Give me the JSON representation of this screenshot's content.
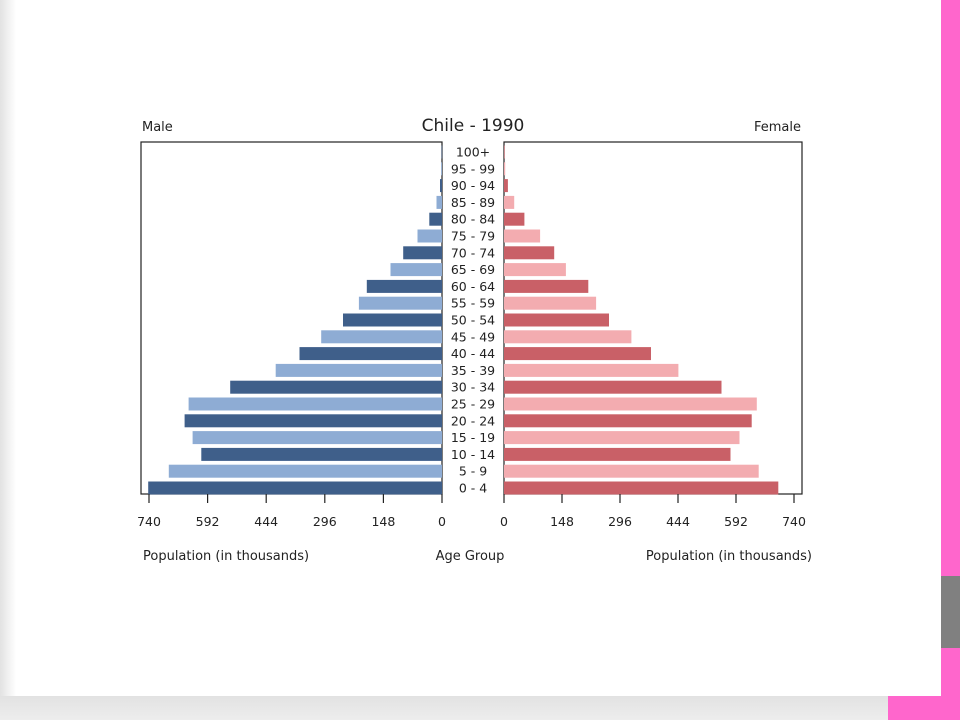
{
  "theme": {
    "accent_pink": "#ff66cc",
    "accent_gray": "#808080",
    "male_dark": "#3f5f8a",
    "male_light": "#8eacd4",
    "female_dark": "#c96067",
    "female_light": "#f3acb0"
  },
  "chart_data": {
    "type": "bar",
    "subtype": "population-pyramid",
    "title": "Chile - 1990",
    "left_label": "Male",
    "right_label": "Female",
    "center_xlabel": "Age Group",
    "xlabel_left": "Population (in thousands)",
    "xlabel_right": "Population (in thousands)",
    "xlim": [
      0,
      740
    ],
    "ticks_left": [
      "740",
      "592",
      "444",
      "296",
      "148",
      "0"
    ],
    "ticks_right": [
      "0",
      "148",
      "296",
      "444",
      "592",
      "740"
    ],
    "tick_values": [
      0,
      148,
      296,
      444,
      592,
      740
    ],
    "categories": [
      "0 - 4",
      "5 - 9",
      "10 - 14",
      "15 - 19",
      "20 - 24",
      "25 - 29",
      "30 - 34",
      "35 - 39",
      "40 - 44",
      "45 - 49",
      "50 - 54",
      "55 - 59",
      "60 - 64",
      "65 - 69",
      "70 - 74",
      "75 - 79",
      "80 - 84",
      "85 - 89",
      "90 - 94",
      "95 - 99",
      "100+"
    ],
    "series": [
      {
        "name": "Male",
        "values": [
          742,
          690,
          608,
          630,
          650,
          640,
          535,
          420,
          360,
          305,
          250,
          210,
          190,
          130,
          98,
          62,
          32,
          14,
          5,
          2,
          1
        ]
      },
      {
        "name": "Female",
        "values": [
          700,
          650,
          578,
          601,
          632,
          645,
          555,
          445,
          375,
          325,
          268,
          235,
          215,
          158,
          128,
          92,
          52,
          26,
          10,
          3,
          1
        ]
      }
    ],
    "grid": false
  }
}
